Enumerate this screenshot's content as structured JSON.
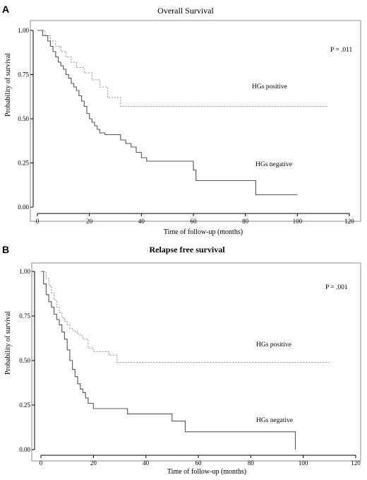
{
  "chart_data": [
    {
      "type": "line",
      "panel": "A",
      "title": "Overall Survival",
      "title_bold": false,
      "xlabel": "Time of follow-up (months)",
      "ylabel": "Probability of survival",
      "xlim": [
        0,
        120
      ],
      "ylim": [
        0,
        1
      ],
      "xticks": [
        0,
        20,
        40,
        60,
        80,
        100,
        120
      ],
      "yticks": [
        0,
        0.25,
        0.5,
        0.75,
        1
      ],
      "ytick_labels": [
        "0.00",
        "0.25",
        "0.50",
        "0.75",
        "1.00"
      ],
      "annotation": "P = .011",
      "legend_placement": "inline labels",
      "grid": false,
      "series": [
        {
          "name": "HGs positive",
          "style": "dotted",
          "color": "#8a8a8a",
          "x": [
            0,
            3,
            5,
            7,
            9,
            11,
            13,
            15,
            18,
            21,
            24,
            27,
            32,
            112
          ],
          "y": [
            1,
            0.97,
            0.94,
            0.91,
            0.88,
            0.85,
            0.82,
            0.79,
            0.76,
            0.72,
            0.68,
            0.62,
            0.57,
            0.57
          ]
        },
        {
          "name": "HGs negative",
          "style": "solid",
          "color": "#555555",
          "x": [
            0,
            2,
            4,
            5,
            6,
            7,
            8,
            9,
            10,
            11,
            12,
            13,
            14,
            15,
            16,
            17,
            18,
            19,
            20,
            21,
            22,
            23,
            24,
            26,
            28,
            30,
            32,
            34,
            36,
            38,
            40,
            42,
            50,
            52,
            60,
            61,
            84,
            100
          ],
          "y": [
            1,
            0.97,
            0.94,
            0.91,
            0.88,
            0.85,
            0.82,
            0.8,
            0.78,
            0.75,
            0.73,
            0.7,
            0.68,
            0.66,
            0.63,
            0.6,
            0.57,
            0.53,
            0.5,
            0.48,
            0.46,
            0.44,
            0.42,
            0.41,
            0.41,
            0.41,
            0.38,
            0.36,
            0.34,
            0.31,
            0.28,
            0.26,
            0.26,
            0.26,
            0.21,
            0.15,
            0.07,
            0.07
          ]
        }
      ]
    },
    {
      "type": "line",
      "panel": "B",
      "title": "Relapse free survival",
      "title_bold": true,
      "xlabel": "Time of follow-up (months)",
      "ylabel": "Probability of survival",
      "xlim": [
        0,
        120
      ],
      "ylim": [
        0,
        1
      ],
      "xticks": [
        0,
        20,
        40,
        60,
        80,
        100,
        120
      ],
      "yticks": [
        0,
        0.25,
        0.5,
        0.75,
        1
      ],
      "ytick_labels": [
        "0.00",
        "0.25",
        "0.50",
        "0.75",
        "1.00"
      ],
      "annotation": "P = .001",
      "legend_placement": "inline labels",
      "grid": false,
      "series": [
        {
          "name": "HGs positive",
          "style": "dotted",
          "color": "#8a8a8a",
          "x": [
            0,
            2,
            3,
            4,
            5,
            6,
            7,
            8,
            9,
            10,
            11,
            12,
            13,
            14,
            15,
            16,
            18,
            20,
            22,
            24,
            26,
            29,
            110
          ],
          "y": [
            1,
            0.96,
            0.92,
            0.88,
            0.84,
            0.8,
            0.77,
            0.74,
            0.72,
            0.7,
            0.68,
            0.67,
            0.66,
            0.65,
            0.64,
            0.62,
            0.57,
            0.55,
            0.55,
            0.55,
            0.53,
            0.49,
            0.49
          ]
        },
        {
          "name": "HGs negative",
          "style": "solid",
          "color": "#555555",
          "x": [
            0,
            1,
            2,
            3,
            4,
            5,
            6,
            7,
            8,
            9,
            10,
            11,
            12,
            13,
            14,
            15,
            16,
            17,
            18,
            20,
            21,
            29,
            33,
            48,
            50,
            55,
            70,
            97
          ],
          "y": [
            1,
            0.93,
            0.87,
            0.83,
            0.8,
            0.76,
            0.73,
            0.7,
            0.66,
            0.62,
            0.56,
            0.5,
            0.45,
            0.41,
            0.37,
            0.34,
            0.32,
            0.29,
            0.26,
            0.23,
            0.23,
            0.23,
            0.2,
            0.2,
            0.16,
            0.1,
            0.1,
            0
          ]
        }
      ]
    }
  ]
}
